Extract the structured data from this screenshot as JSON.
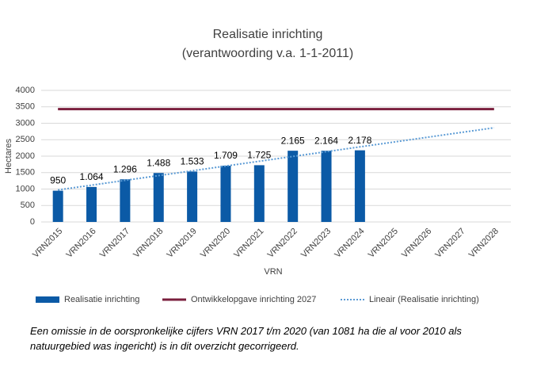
{
  "chart_data": {
    "type": "bar",
    "title": "Realisatie inrichting",
    "subtitle": "(verantwoording v.a. 1-1-2011)",
    "x_label": "VRN",
    "y_label": "Hectares",
    "categories": [
      "VRN2015",
      "VRN2016",
      "VRN2017",
      "VRN2018",
      "VRN2019",
      "VRN2020",
      "VRN2021",
      "VRN2022",
      "VRN2023",
      "VRN2024",
      "VRN2025",
      "VRN2026",
      "VRN2027",
      "VRN2028"
    ],
    "series": [
      {
        "name": "Realisatie inrichting",
        "type": "bar",
        "color": "#0b5aa6",
        "values": [
          950,
          1064,
          1296,
          1488,
          1533,
          1709,
          1725,
          2165,
          2164,
          2178,
          null,
          null,
          null,
          null
        ],
        "value_labels": [
          "950",
          "1.064",
          "1.296",
          "1.488",
          "1.533",
          "1.709",
          "1.725",
          "2.165",
          "2.164",
          "2.178",
          null,
          null,
          null,
          null
        ]
      },
      {
        "name": "Ontwikkelopgave inrichting 2027",
        "type": "line",
        "color": "#7a1f3d",
        "values": [
          3430,
          3430,
          3430,
          3430,
          3430,
          3430,
          3430,
          3430,
          3430,
          3430,
          3430,
          3430,
          3430,
          3430
        ]
      },
      {
        "name": "Lineair (Realisatie inrichting)",
        "type": "line",
        "style": "dotted",
        "color": "#5b9bd5",
        "values": [
          973,
          1118,
          1264,
          1409,
          1555,
          1700,
          1845,
          1991,
          2136,
          2282,
          2427,
          2573,
          2718,
          2863
        ]
      }
    ],
    "ylim": [
      0,
      4000
    ],
    "yticks": [
      0,
      500,
      1000,
      1500,
      2000,
      2500,
      3000,
      3500,
      4000
    ],
    "grid": true,
    "legend": "bottom",
    "note": "Een omissie in de oorspronkelijke cijfers VRN 2017 t/m 2020 (van 1081 ha die al voor 2010 als natuurgebied was ingericht) is in dit overzicht gecorrigeerd."
  }
}
